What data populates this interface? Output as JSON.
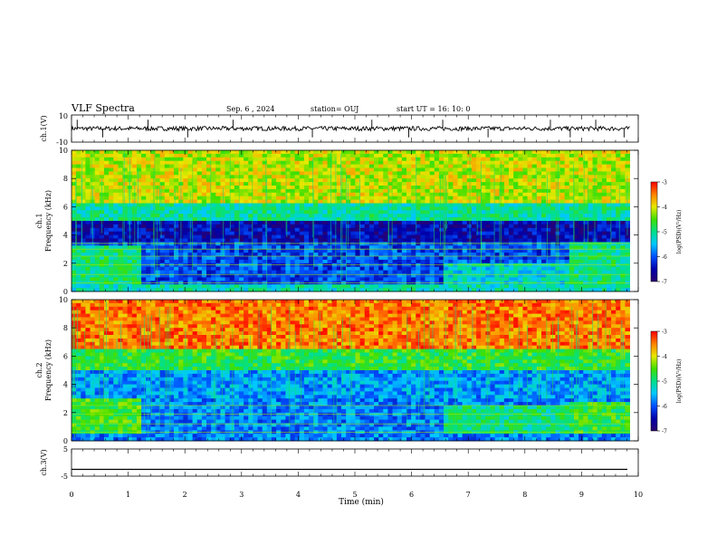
{
  "header": {
    "title": "VLF Spectra",
    "date": "Sep. 6  , 2024",
    "station": "station= OUJ",
    "start": "start  UT =   16: 10: 0"
  },
  "colors": {
    "spectrum_stops": [
      "#2a0070",
      "#0000aa",
      "#0050ff",
      "#00c8ff",
      "#00e08a",
      "#40e000",
      "#e8e800",
      "#ff8000",
      "#ff0000"
    ]
  },
  "chart_data": [
    {
      "type": "line",
      "name": "ch1-waveform",
      "ylabel": "ch.1(V)",
      "yticks": [
        "10",
        "-10"
      ],
      "ylim": [
        -10,
        10
      ],
      "xlim": [
        0,
        10
      ],
      "baseline": 0,
      "spike_minutes": [
        0.1,
        0.55,
        1.35,
        2.05,
        2.85,
        4.25,
        5.3,
        5.95,
        6.55,
        7.35,
        8.45,
        8.8,
        9.25,
        9.75
      ]
    },
    {
      "type": "heatmap",
      "name": "ch1-spectrogram",
      "ylabel": "ch.1\nFrequency (kHz)",
      "yticks": [
        "10",
        "8",
        "6",
        "4",
        "2",
        "0"
      ],
      "ylim": [
        0,
        10
      ],
      "xlim": [
        0,
        9.85
      ],
      "colorbar": {
        "label": "log(PSD)(V²/Hz)",
        "ticks": [
          "-3",
          "-4",
          "-5",
          "-6",
          "-7"
        ],
        "range": [
          -7,
          -3
        ]
      },
      "bands": [
        {
          "f": [
            6.2,
            10.0
          ],
          "level": 0.72
        },
        {
          "f": [
            5.0,
            6.2
          ],
          "level": 0.48
        },
        {
          "f": [
            3.4,
            5.0
          ],
          "level": 0.12
        },
        {
          "f": [
            0.5,
            3.4
          ],
          "level": 0.24
        },
        {
          "f": [
            0.0,
            0.5
          ],
          "level": 0.45
        }
      ],
      "segments": [
        {
          "t": [
            0.0,
            1.25
          ],
          "f": [
            0.6,
            3.3
          ],
          "level": 0.52
        },
        {
          "t": [
            6.6,
            8.75
          ],
          "f": [
            0.6,
            2.0
          ],
          "level": 0.42
        },
        {
          "t": [
            8.75,
            9.85
          ],
          "f": [
            0.6,
            3.4
          ],
          "level": 0.5
        }
      ],
      "lines_khz": [
        0.6,
        1.2,
        1.9,
        2.5,
        3.0,
        3.4
      ]
    },
    {
      "type": "heatmap",
      "name": "ch2-spectrogram",
      "ylabel": "ch.2\nFrequency (kHz)",
      "yticks": [
        "10",
        "8",
        "6",
        "4",
        "2",
        "0"
      ],
      "ylim": [
        0,
        10
      ],
      "xlim": [
        0,
        9.85
      ],
      "colorbar": {
        "label": "log(PSD)(V²/Hz)",
        "ticks": [
          "-3",
          "-4",
          "-5",
          "-6",
          "-7"
        ],
        "range": [
          -7,
          -3
        ]
      },
      "bands": [
        {
          "f": [
            6.5,
            10.0
          ],
          "level": 0.88
        },
        {
          "f": [
            5.0,
            6.5
          ],
          "level": 0.58
        },
        {
          "f": [
            3.0,
            5.0
          ],
          "level": 0.33
        },
        {
          "f": [
            0.0,
            3.0
          ],
          "level": 0.3
        }
      ],
      "segments": [
        {
          "t": [
            0.0,
            1.25
          ],
          "f": [
            0.6,
            3.0
          ],
          "level": 0.6
        },
        {
          "t": [
            6.6,
            8.75
          ],
          "f": [
            0.6,
            2.5
          ],
          "level": 0.5
        },
        {
          "t": [
            8.75,
            9.85
          ],
          "f": [
            0.6,
            2.8
          ],
          "level": 0.58
        }
      ],
      "lines_khz": [
        0.6,
        1.2,
        1.9,
        2.5
      ]
    },
    {
      "type": "line",
      "name": "ch3-waveform",
      "ylabel": "ch.3(V)",
      "yticks": [
        "5",
        "-5"
      ],
      "ylim": [
        -5,
        5
      ],
      "xlim": [
        0,
        9.85
      ],
      "value": -2.5
    }
  ],
  "xaxis": {
    "label": "Time  (min)",
    "ticks": [
      "0",
      "1",
      "2",
      "3",
      "4",
      "5",
      "6",
      "7",
      "8",
      "9",
      "10"
    ],
    "range": [
      0,
      10
    ]
  }
}
